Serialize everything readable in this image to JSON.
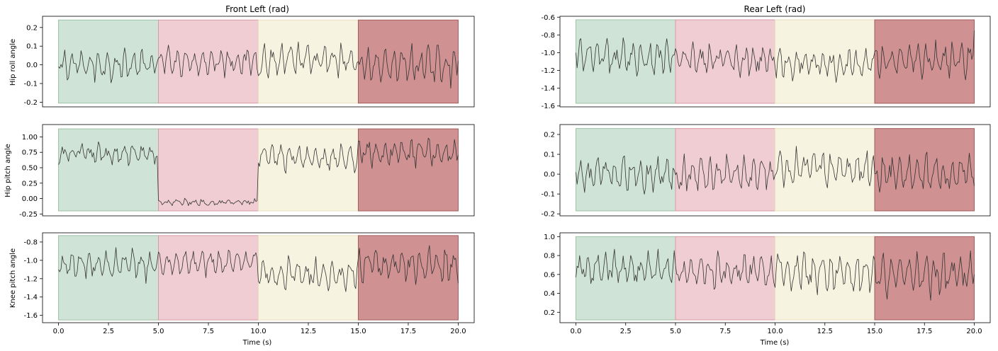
{
  "figure": {
    "col_titles": [
      "Front Left (rad)",
      "Rear Left (rad)"
    ],
    "row_ylabels": [
      "Hip roll angle",
      "Hip pitch angle",
      "Knee pitch angle"
    ],
    "xlabel": "Time (s)"
  },
  "colors": {
    "band_fill": [
      "#cfe3d6",
      "#efcdd3",
      "#f7f3e1",
      "#cf9191"
    ],
    "band_edge": [
      "#9dc3a7",
      "#d99aa5",
      "#e9dfbb",
      "#a65d5d"
    ],
    "trace": "#333333",
    "frame": "#000000"
  },
  "chart_data": [
    {
      "type": "line",
      "panel": "front-left-hip-roll",
      "title": "Front Left (rad)",
      "ylabel": "Hip roll angle",
      "xlabel": "",
      "xlim": [
        -0.8,
        20.8
      ],
      "ylim": [
        -0.225,
        0.26
      ],
      "xticks": [],
      "yticks": [
        -0.2,
        -0.1,
        0.0,
        0.1,
        0.2
      ],
      "ytick_labels": [
        "-0.2",
        "-0.1",
        "0.0",
        "0.1",
        "0.2"
      ],
      "bands": [
        {
          "x": [
            0,
            5
          ],
          "y": [
            -0.205,
            0.24
          ]
        },
        {
          "x": [
            5,
            10
          ],
          "y": [
            -0.205,
            0.24
          ]
        },
        {
          "x": [
            10,
            15
          ],
          "y": [
            -0.205,
            0.24
          ]
        },
        {
          "x": [
            15,
            20
          ],
          "y": [
            -0.205,
            0.24
          ]
        }
      ],
      "series": [
        {
          "x_range": [
            0,
            20
          ],
          "n": 320,
          "segments": [
            {
              "base": 0.0,
              "amp": 0.075,
              "noise": 0.02
            },
            {
              "base": 0.02,
              "amp": 0.065,
              "noise": 0.02
            },
            {
              "base": 0.02,
              "amp": 0.085,
              "noise": 0.025
            },
            {
              "base": 0.0,
              "amp": 0.1,
              "noise": 0.025
            }
          ],
          "start": -0.01,
          "end": 0.02
        }
      ]
    },
    {
      "type": "line",
      "panel": "front-left-hip-pitch",
      "ylabel": "Hip pitch angle",
      "xlabel": "",
      "xlim": [
        -0.8,
        20.8
      ],
      "ylim": [
        -0.28,
        1.2
      ],
      "xticks": [],
      "yticks": [
        -0.25,
        0.0,
        0.25,
        0.5,
        0.75,
        1.0
      ],
      "ytick_labels": [
        "-0.25",
        "0.00",
        "0.25",
        "0.50",
        "0.75",
        "1.00"
      ],
      "bands": [
        {
          "x": [
            0,
            5
          ],
          "y": [
            -0.2,
            1.13
          ]
        },
        {
          "x": [
            5,
            10
          ],
          "y": [
            -0.2,
            1.13
          ]
        },
        {
          "x": [
            10,
            15
          ],
          "y": [
            -0.2,
            1.13
          ]
        },
        {
          "x": [
            15,
            20
          ],
          "y": [
            -0.2,
            1.13
          ]
        }
      ],
      "series": [
        {
          "x_range": [
            0,
            20
          ],
          "n": 320,
          "segments": [
            {
              "base": 0.72,
              "amp": 0.14,
              "noise": 0.05
            },
            {
              "base": -0.06,
              "amp": 0.04,
              "noise": 0.02
            },
            {
              "base": 0.67,
              "amp": 0.2,
              "noise": 0.06
            },
            {
              "base": 0.74,
              "amp": 0.2,
              "noise": 0.06
            }
          ],
          "start": 0.55,
          "end": 0.7
        }
      ]
    },
    {
      "type": "line",
      "panel": "front-left-knee-pitch",
      "ylabel": "Knee pitch angle",
      "xlabel": "Time (s)",
      "xlim": [
        -0.8,
        20.8
      ],
      "ylim": [
        -1.68,
        -0.7
      ],
      "xticks": [
        0,
        2.5,
        5,
        7.5,
        10,
        12.5,
        15,
        17.5,
        20
      ],
      "xtick_labels": [
        "0.0",
        "2.5",
        "5.0",
        "7.5",
        "10.0",
        "12.5",
        "15.0",
        "17.5",
        "20.0"
      ],
      "yticks": [
        -1.6,
        -1.4,
        -1.2,
        -1.0,
        -0.8
      ],
      "ytick_labels": [
        "-1.6",
        "-1.4",
        "-1.2",
        "-1.0",
        "-0.8"
      ],
      "bands": [
        {
          "x": [
            0,
            5
          ],
          "y": [
            -1.65,
            -0.73
          ]
        },
        {
          "x": [
            5,
            10
          ],
          "y": [
            -1.65,
            -0.73
          ]
        },
        {
          "x": [
            10,
            15
          ],
          "y": [
            -1.65,
            -0.73
          ]
        },
        {
          "x": [
            15,
            20
          ],
          "y": [
            -1.65,
            -0.73
          ]
        }
      ],
      "series": [
        {
          "x_range": [
            0,
            20
          ],
          "n": 320,
          "segments": [
            {
              "base": -1.05,
              "amp": 0.14,
              "noise": 0.04
            },
            {
              "base": -1.03,
              "amp": 0.13,
              "noise": 0.04
            },
            {
              "base": -1.15,
              "amp": 0.16,
              "noise": 0.05
            },
            {
              "base": -1.05,
              "amp": 0.18,
              "noise": 0.05
            }
          ],
          "start": -1.1,
          "end": -1.25
        }
      ]
    },
    {
      "type": "line",
      "panel": "rear-left-hip-roll",
      "title": "Rear Left (rad)",
      "ylabel": "",
      "xlabel": "",
      "xlim": [
        -0.8,
        20.8
      ],
      "ylim": [
        -1.61,
        -0.59
      ],
      "xticks": [],
      "yticks": [
        -1.6,
        -1.4,
        -1.2,
        -1.0,
        -0.8,
        -0.6
      ],
      "ytick_labels": [
        "-1.6",
        "-1.4",
        "-1.2",
        "-1.0",
        "-0.8",
        "-0.6"
      ],
      "bands": [
        {
          "x": [
            0,
            5
          ],
          "y": [
            -1.57,
            -0.63
          ]
        },
        {
          "x": [
            5,
            10
          ],
          "y": [
            -1.57,
            -0.63
          ]
        },
        {
          "x": [
            10,
            15
          ],
          "y": [
            -1.57,
            -0.63
          ]
        },
        {
          "x": [
            15,
            20
          ],
          "y": [
            -1.57,
            -0.63
          ]
        }
      ],
      "series": [
        {
          "x_range": [
            0,
            20
          ],
          "n": 320,
          "segments": [
            {
              "base": -1.05,
              "amp": 0.17,
              "noise": 0.05
            },
            {
              "base": -1.08,
              "amp": 0.15,
              "noise": 0.05
            },
            {
              "base": -1.12,
              "amp": 0.14,
              "noise": 0.05
            },
            {
              "base": -1.08,
              "amp": 0.16,
              "noise": 0.05
            }
          ],
          "start": -1.0,
          "end": -0.75
        }
      ]
    },
    {
      "type": "line",
      "panel": "rear-left-hip-pitch",
      "ylabel": "",
      "xlabel": "",
      "xlim": [
        -0.8,
        20.8
      ],
      "ylim": [
        -0.21,
        0.25
      ],
      "xticks": [],
      "yticks": [
        -0.2,
        -0.1,
        0.0,
        0.1,
        0.2
      ],
      "ytick_labels": [
        "-0.2",
        "-0.1",
        "0.0",
        "0.1",
        "0.2"
      ],
      "bands": [
        {
          "x": [
            0,
            5
          ],
          "y": [
            -0.185,
            0.23
          ]
        },
        {
          "x": [
            5,
            10
          ],
          "y": [
            -0.185,
            0.23
          ]
        },
        {
          "x": [
            10,
            15
          ],
          "y": [
            -0.185,
            0.23
          ]
        },
        {
          "x": [
            15,
            20
          ],
          "y": [
            -0.185,
            0.23
          ]
        }
      ],
      "series": [
        {
          "x_range": [
            0,
            20
          ],
          "n": 320,
          "segments": [
            {
              "base": 0.0,
              "amp": 0.08,
              "noise": 0.025
            },
            {
              "base": 0.0,
              "amp": 0.08,
              "noise": 0.025
            },
            {
              "base": 0.03,
              "amp": 0.09,
              "noise": 0.025
            },
            {
              "base": 0.0,
              "amp": 0.09,
              "noise": 0.025
            }
          ],
          "start": 0.01,
          "end": -0.06
        }
      ]
    },
    {
      "type": "line",
      "panel": "rear-left-knee-pitch",
      "ylabel": "",
      "xlabel": "Time (s)",
      "xlim": [
        -0.8,
        20.8
      ],
      "ylim": [
        0.09,
        1.04
      ],
      "xticks": [
        0,
        2.5,
        5,
        7.5,
        10,
        12.5,
        15,
        17.5,
        20
      ],
      "xtick_labels": [
        "0.0",
        "2.5",
        "5.0",
        "7.5",
        "10.0",
        "12.5",
        "15.0",
        "17.5",
        "20.0"
      ],
      "yticks": [
        0.2,
        0.4,
        0.6,
        0.8,
        1.0
      ],
      "ytick_labels": [
        "0.2",
        "0.4",
        "0.6",
        "0.8",
        "1.0"
      ],
      "bands": [
        {
          "x": [
            0,
            5
          ],
          "y": [
            0.12,
            1.0
          ]
        },
        {
          "x": [
            5,
            10
          ],
          "y": [
            0.12,
            1.0
          ]
        },
        {
          "x": [
            10,
            15
          ],
          "y": [
            0.12,
            1.0
          ]
        },
        {
          "x": [
            15,
            20
          ],
          "y": [
            0.12,
            1.0
          ]
        }
      ],
      "series": [
        {
          "x_range": [
            0,
            20
          ],
          "n": 320,
          "segments": [
            {
              "base": 0.65,
              "amp": 0.17,
              "noise": 0.05
            },
            {
              "base": 0.63,
              "amp": 0.16,
              "noise": 0.05
            },
            {
              "base": 0.62,
              "amp": 0.2,
              "noise": 0.06
            },
            {
              "base": 0.6,
              "amp": 0.2,
              "noise": 0.06
            }
          ],
          "start": 0.57,
          "end": 0.6
        }
      ]
    }
  ]
}
